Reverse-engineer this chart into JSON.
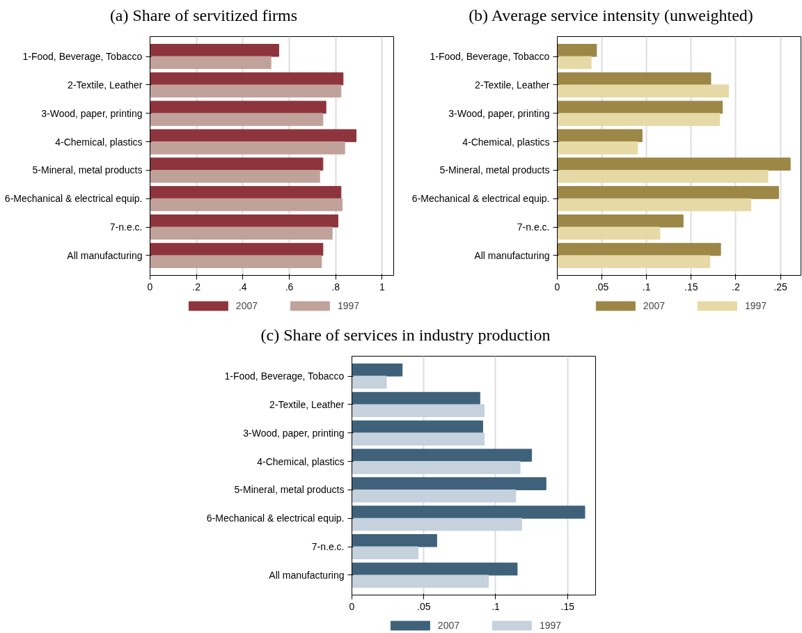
{
  "chart_data": [
    {
      "type": "bar",
      "orientation": "horizontal",
      "title": "(a) Share of servitized firms",
      "categories": [
        "1-Food, Beverage, Tobacco",
        "2-Textile, Leather",
        "3-Wood, paper, printing",
        "4-Chemical, plastics",
        "5-Mineral, metal products",
        "6-Mechanical & electrical equip.",
        "7-n.e.c.",
        "All manufacturing"
      ],
      "series": [
        {
          "name": "2007",
          "color": "#8e343d",
          "values": [
            0.555,
            0.832,
            0.758,
            0.888,
            0.745,
            0.823,
            0.81,
            0.745
          ]
        },
        {
          "name": "1997",
          "color": "#c0a29b",
          "values": [
            0.521,
            0.823,
            0.745,
            0.839,
            0.731,
            0.828,
            0.785,
            0.739
          ]
        }
      ],
      "xlim": [
        0,
        1.05
      ],
      "xticks": [
        {
          "value": 0,
          "label": "0"
        },
        {
          "value": 0.2,
          "label": ".2"
        },
        {
          "value": 0.4,
          "label": ".4"
        },
        {
          "value": 0.6,
          "label": ".6"
        },
        {
          "value": 0.8,
          "label": ".8"
        },
        {
          "value": 1,
          "label": "1"
        }
      ],
      "grid": "x",
      "legend": "bottom"
    },
    {
      "type": "bar",
      "orientation": "horizontal",
      "title": "(b) Average service intensity (unweighted)",
      "categories": [
        "1-Food, Beverage, Tobacco",
        "2-Textile, Leather",
        "3-Wood, paper, printing",
        "4-Chemical, plastics",
        "5-Mineral, metal products",
        "6-Mechanical & electrical equip.",
        "7-n.e.c.",
        "All manufacturing"
      ],
      "series": [
        {
          "name": "2007",
          "color": "#9c8747",
          "values": [
            0.044,
            0.172,
            0.185,
            0.095,
            0.261,
            0.248,
            0.141,
            0.183
          ]
        },
        {
          "name": "1997",
          "color": "#e6d9a6",
          "values": [
            0.038,
            0.192,
            0.182,
            0.09,
            0.236,
            0.217,
            0.115,
            0.171
          ]
        }
      ],
      "xlim": [
        0,
        0.273
      ],
      "xticks": [
        {
          "value": 0,
          "label": "0"
        },
        {
          "value": 0.05,
          "label": ".05"
        },
        {
          "value": 0.1,
          "label": ".1"
        },
        {
          "value": 0.15,
          "label": ".15"
        },
        {
          "value": 0.2,
          "label": ".2"
        },
        {
          "value": 0.25,
          "label": ".25"
        }
      ],
      "grid": "x",
      "legend": "bottom"
    },
    {
      "type": "bar",
      "orientation": "horizontal",
      "title": "(c) Share of services in industry production",
      "categories": [
        "1-Food, Beverage, Tobacco",
        "2-Textile, Leather",
        "3-Wood, paper, printing",
        "4-Chemical, plastics",
        "5-Mineral, metal products",
        "6-Mechanical & electrical equip.",
        "7-n.e.c.",
        "All manufacturing"
      ],
      "series": [
        {
          "name": "2007",
          "color": "#3f627a",
          "values": [
            0.035,
            0.089,
            0.091,
            0.125,
            0.135,
            0.162,
            0.059,
            0.115
          ]
        },
        {
          "name": "1997",
          "color": "#c5d1dd",
          "values": [
            0.024,
            0.092,
            0.092,
            0.117,
            0.114,
            0.118,
            0.046,
            0.095
          ]
        }
      ],
      "xlim": [
        0,
        0.1695
      ],
      "xticks": [
        {
          "value": 0,
          "label": "0"
        },
        {
          "value": 0.05,
          "label": ".05"
        },
        {
          "value": 0.1,
          "label": ".1"
        },
        {
          "value": 0.15,
          "label": ".15"
        }
      ],
      "grid": "x",
      "legend": "bottom"
    }
  ]
}
